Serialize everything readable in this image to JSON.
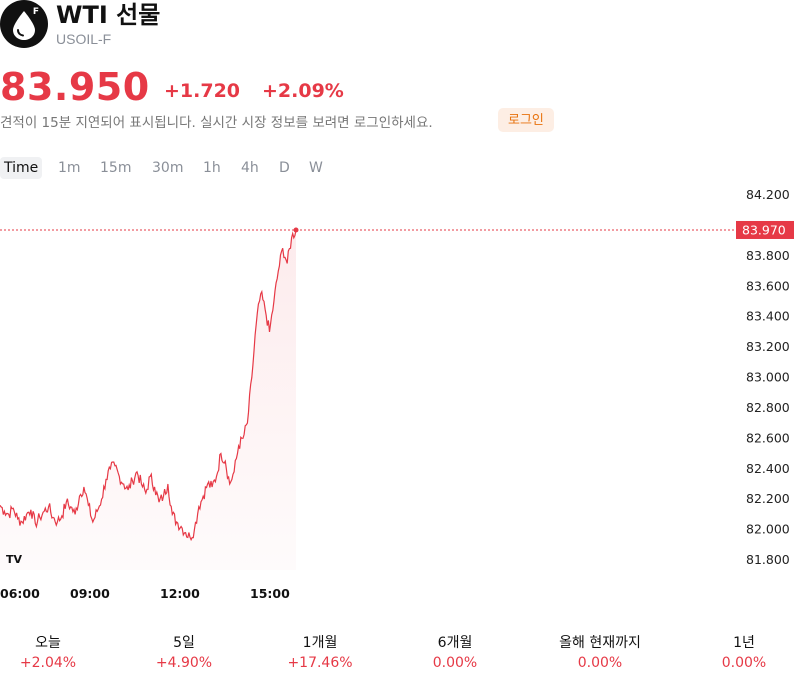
{
  "header": {
    "title": "WTI 선물",
    "symbol": "USOIL-F",
    "logo_badge": "F",
    "logo_icon": "oil-drop-icon"
  },
  "quote": {
    "price": "83.950",
    "change": "+1.720",
    "change_pct": "+2.09%",
    "delay_note": "견적이 15분 지연되어 표시됩니다. 실시간 시장 정보를 보려면 로그인하세요.",
    "login_label": "로그인"
  },
  "timeframes": {
    "items": [
      "Time",
      "1m",
      "15m",
      "30m",
      "1h",
      "4h",
      "D",
      "W"
    ],
    "active": "Time"
  },
  "chart_data": {
    "type": "line",
    "series": [
      {
        "values": [
          82.16,
          82.12,
          82.1,
          82.14,
          82.07,
          82.05,
          82.1,
          82.13,
          82.04,
          82.08,
          82.12,
          82.15,
          82.08,
          82.05,
          82.09,
          82.18,
          82.15,
          82.1,
          82.22,
          82.28,
          82.16,
          82.05,
          82.12,
          82.2,
          82.33,
          82.4,
          82.42,
          82.35,
          82.3,
          82.26,
          82.32,
          82.38,
          82.3,
          82.24,
          82.35,
          82.28,
          82.18,
          82.22,
          82.3,
          82.1,
          82.05,
          82.02,
          81.98,
          81.95,
          82.0,
          82.15,
          82.22,
          82.3,
          82.28,
          82.35,
          82.5,
          82.45,
          82.3,
          82.38,
          82.55,
          82.6,
          82.7,
          83.0,
          83.35,
          83.55,
          83.45,
          83.3,
          83.5,
          83.7,
          83.85,
          83.75,
          83.92,
          83.97
        ],
        "color": "#e63946"
      }
    ],
    "x_ticks": [
      "06:00",
      "09:00",
      "12:00",
      "15:00"
    ],
    "y_ticks": [
      "84.200",
      "83.800",
      "83.600",
      "83.400",
      "83.200",
      "83.000",
      "82.800",
      "82.600",
      "82.400",
      "82.200",
      "82.000",
      "81.800"
    ],
    "ylim": [
      81.8,
      84.2
    ],
    "last_value_label": "83.970",
    "last_value": 83.97
  },
  "performance": [
    {
      "label": "오늘",
      "value": "+2.04%"
    },
    {
      "label": "5일",
      "value": "+4.90%"
    },
    {
      "label": "1개월",
      "value": "+17.46%"
    },
    {
      "label": "6개월",
      "value": "0.00%"
    },
    {
      "label": "올해 현재까지",
      "value": "0.00%"
    },
    {
      "label": "1년",
      "value": "0.00%"
    }
  ],
  "colors": {
    "accent_red": "#e63946",
    "login_bg": "#fdeee4",
    "login_text": "#e8730e"
  },
  "branding": {
    "chart_logo": "TV"
  }
}
